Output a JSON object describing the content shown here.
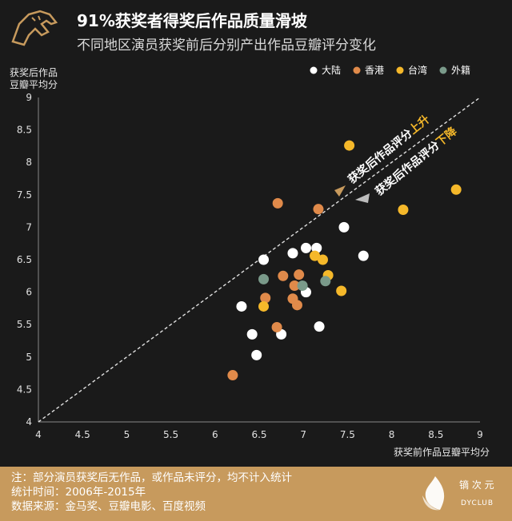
{
  "header": {
    "title": "91%获奖者得奖后作品质量滑坡",
    "subtitle": "不同地区演员获奖前后分别产出作品豆瓣评分变化"
  },
  "colors": {
    "background": "#1a1a1a",
    "accent": "#c79a5d",
    "mainland": "#ffffff",
    "hongkong": "#e08a4a",
    "taiwan": "#f5b82a",
    "foreign": "#7a9a8a"
  },
  "chart_data": {
    "type": "scatter",
    "title": "",
    "xlabel": "获奖前作品豆瓣平均分",
    "ylabel": [
      "获奖后作品",
      "豆瓣平均分"
    ],
    "xlim": [
      4,
      9
    ],
    "ylim": [
      4,
      9
    ],
    "x_ticks": [
      "4",
      "4.5",
      "5",
      "5.5",
      "6",
      "6.5",
      "7",
      "7.5",
      "8",
      "8.5",
      "9"
    ],
    "y_ticks": [
      "4",
      "4.5",
      "5",
      "5.5",
      "6",
      "6.5",
      "7",
      "7.5",
      "8",
      "8.5",
      "9"
    ],
    "grid": false,
    "legend_position": "top-right",
    "reference_line": "y = x",
    "series": [
      {
        "name": "大陆",
        "color": "#ffffff",
        "points": [
          [
            6.3,
            5.78
          ],
          [
            6.42,
            5.35
          ],
          [
            6.47,
            5.03
          ],
          [
            6.55,
            6.5
          ],
          [
            6.75,
            5.35
          ],
          [
            6.88,
            6.6
          ],
          [
            7.03,
            6.68
          ],
          [
            7.03,
            6.0
          ],
          [
            7.15,
            6.68
          ],
          [
            7.18,
            5.47
          ],
          [
            7.46,
            7.0
          ],
          [
            7.68,
            6.56
          ]
        ]
      },
      {
        "name": "香港",
        "color": "#e08a4a",
        "points": [
          [
            6.2,
            4.72
          ],
          [
            6.57,
            5.91
          ],
          [
            6.7,
            5.46
          ],
          [
            6.71,
            7.37
          ],
          [
            6.77,
            6.25
          ],
          [
            6.88,
            5.9
          ],
          [
            6.9,
            6.1
          ],
          [
            6.93,
            5.8
          ],
          [
            6.95,
            6.27
          ],
          [
            7.17,
            7.28
          ]
        ]
      },
      {
        "name": "台湾",
        "color": "#f5b82a",
        "points": [
          [
            6.55,
            5.78
          ],
          [
            7.13,
            6.56
          ],
          [
            7.22,
            6.5
          ],
          [
            7.28,
            6.26
          ],
          [
            7.43,
            6.02
          ],
          [
            7.52,
            8.26
          ],
          [
            8.13,
            7.27
          ],
          [
            8.73,
            7.58
          ]
        ]
      },
      {
        "name": "外籍",
        "color": "#7a9a8a",
        "points": [
          [
            6.55,
            6.2
          ],
          [
            6.99,
            6.1
          ],
          [
            7.25,
            6.17
          ]
        ]
      }
    ],
    "annotations": [
      {
        "text": "获奖后作品评分",
        "highlight": "上升"
      },
      {
        "text": "获奖后作品评分",
        "highlight": "下降"
      }
    ]
  },
  "footer": {
    "notes": [
      "注：部分演员获奖后无作品，或作品未评分，均不计入统计",
      "统计时间：2006年-2015年",
      "数据来源：金马奖、豆瓣电影、百度视频"
    ],
    "brand_cn": "镝 次 元",
    "brand_en": "DYCLUB"
  }
}
